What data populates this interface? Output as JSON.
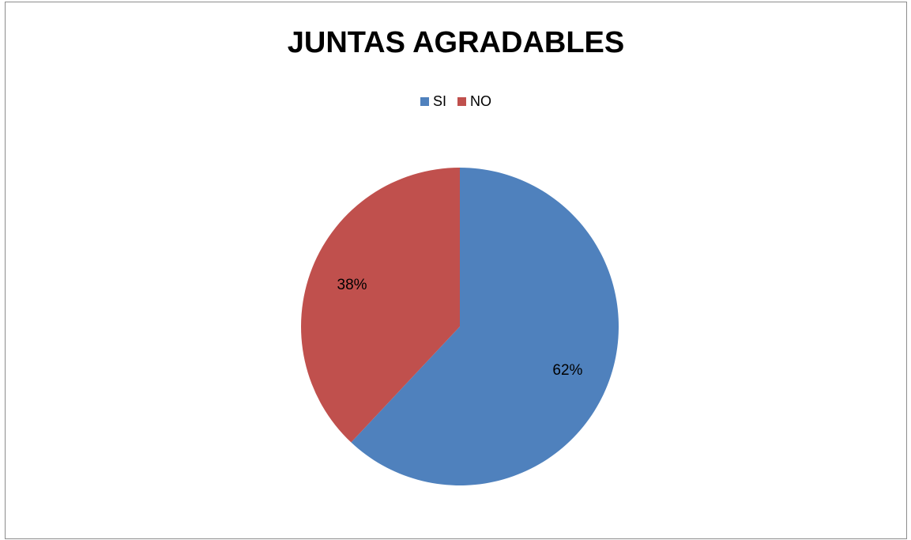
{
  "chart_data": {
    "type": "pie",
    "title": "JUNTAS AGRADABLES",
    "categories": [
      "SI",
      "NO"
    ],
    "values": [
      62,
      38
    ],
    "data_labels": [
      "62%",
      "38%"
    ],
    "colors": [
      "#4F81BD",
      "#C0504D"
    ],
    "legend_position": "top",
    "start_angle": "12 o'clock",
    "direction": "clockwise"
  }
}
